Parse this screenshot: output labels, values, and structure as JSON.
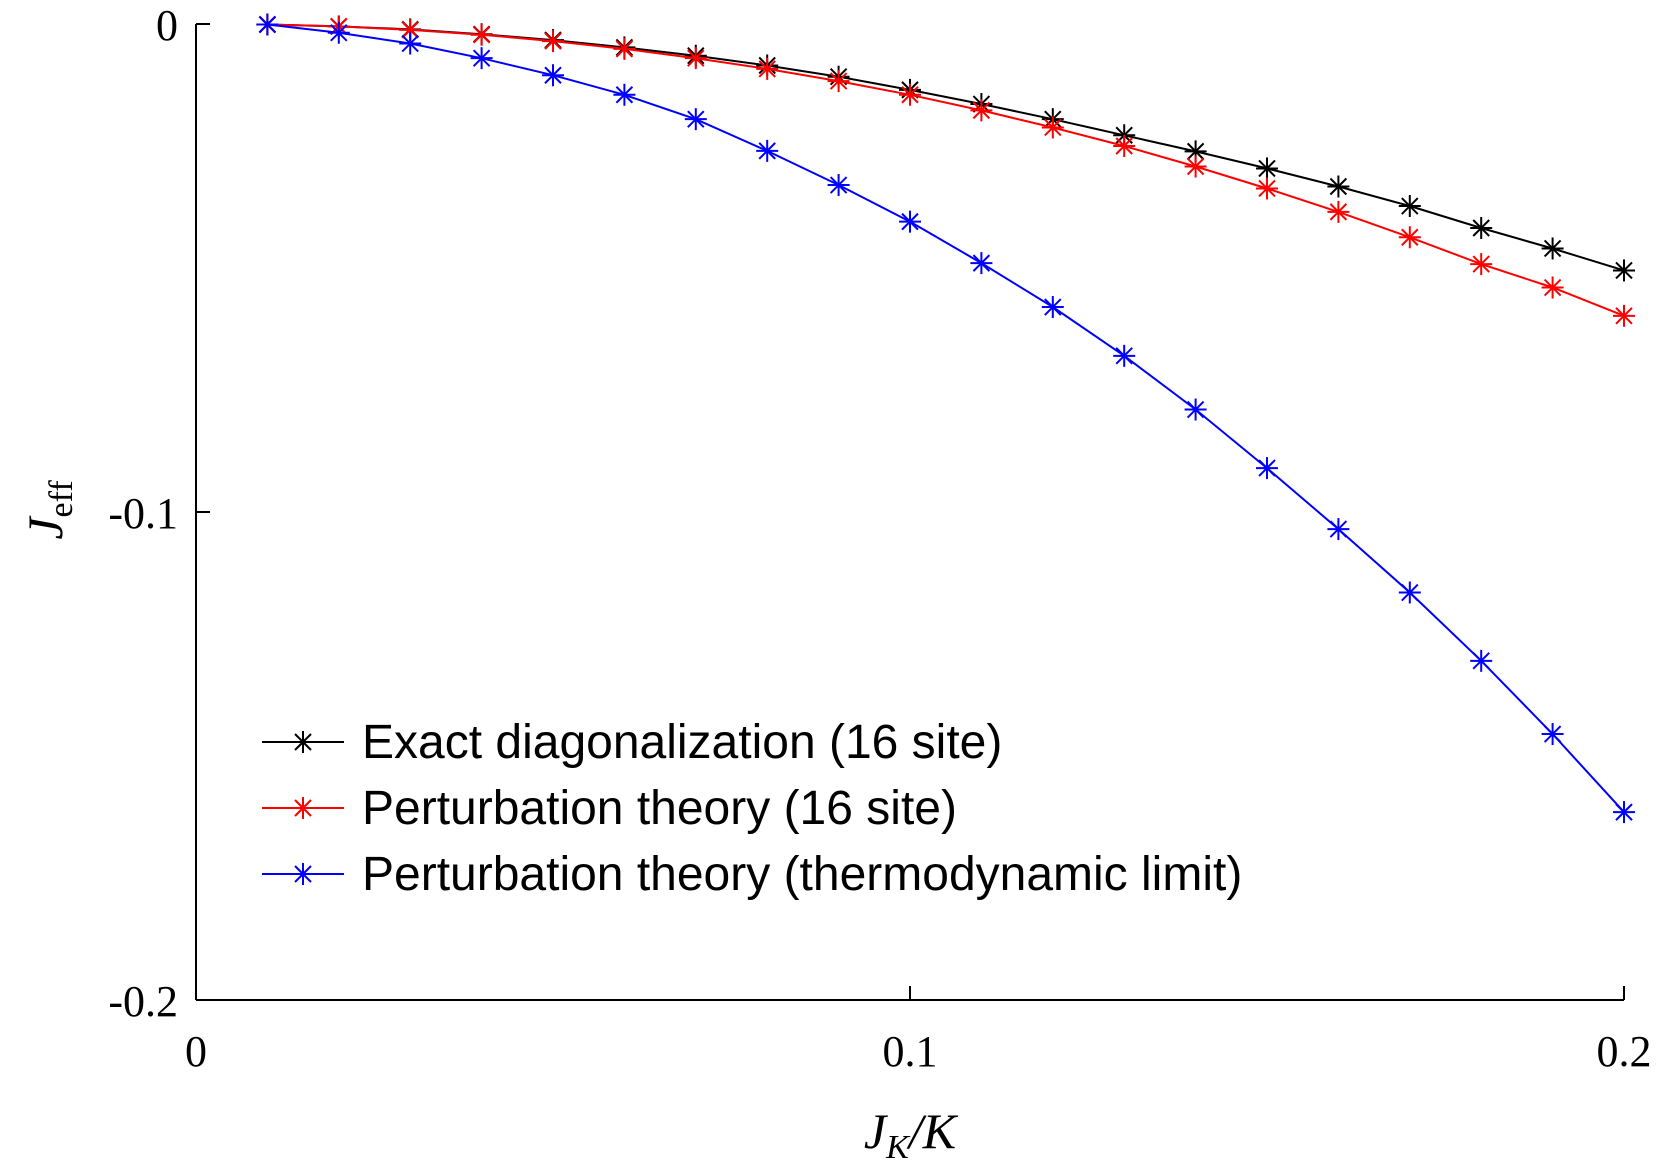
{
  "chart_data": {
    "type": "line",
    "title": "",
    "xlabel": "J_K/K",
    "ylabel": "J_eff",
    "xlim": [
      0,
      0.2
    ],
    "ylim": [
      -0.2,
      0
    ],
    "xticks": [
      "0",
      "0.1",
      "0.2"
    ],
    "yticks": [
      "0",
      "-0.1",
      "-0.2"
    ],
    "x": [
      0.01,
      0.02,
      0.03,
      0.04,
      0.05,
      0.06,
      0.07,
      0.08,
      0.09,
      0.1,
      0.11,
      0.12,
      0.13,
      0.14,
      0.15,
      0.16,
      0.17,
      0.18,
      0.19,
      0.2
    ],
    "legend_position": "lower-left",
    "series": [
      {
        "name": "Exact diagonalization (16 site)",
        "color": "#000000",
        "marker": "asterisk",
        "values": [
          -0.0001,
          -0.0005,
          -0.0011,
          -0.0021,
          -0.0033,
          -0.0048,
          -0.0065,
          -0.0085,
          -0.0108,
          -0.0135,
          -0.0164,
          -0.0195,
          -0.0228,
          -0.0261,
          -0.0296,
          -0.0333,
          -0.0373,
          -0.0418,
          -0.046,
          -0.0505
        ]
      },
      {
        "name": "Perturbation theory (16 site)",
        "color": "#ff0000",
        "marker": "asterisk",
        "values": [
          -0.0001,
          -0.0005,
          -0.0012,
          -0.0022,
          -0.0035,
          -0.0051,
          -0.007,
          -0.0092,
          -0.0117,
          -0.0145,
          -0.0177,
          -0.0212,
          -0.025,
          -0.0292,
          -0.0337,
          -0.0385,
          -0.0437,
          -0.0492,
          -0.054,
          -0.0598
        ]
      },
      {
        "name": "Perturbation theory (thermodynamic limit)",
        "color": "#0000ff",
        "marker": "asterisk",
        "values": [
          -0.0001,
          -0.0018,
          -0.004,
          -0.007,
          -0.0105,
          -0.0145,
          -0.0195,
          -0.026,
          -0.033,
          -0.0405,
          -0.049,
          -0.058,
          -0.068,
          -0.079,
          -0.091,
          -0.1035,
          -0.1165,
          -0.1305,
          -0.1455,
          -0.1615
        ]
      }
    ]
  }
}
